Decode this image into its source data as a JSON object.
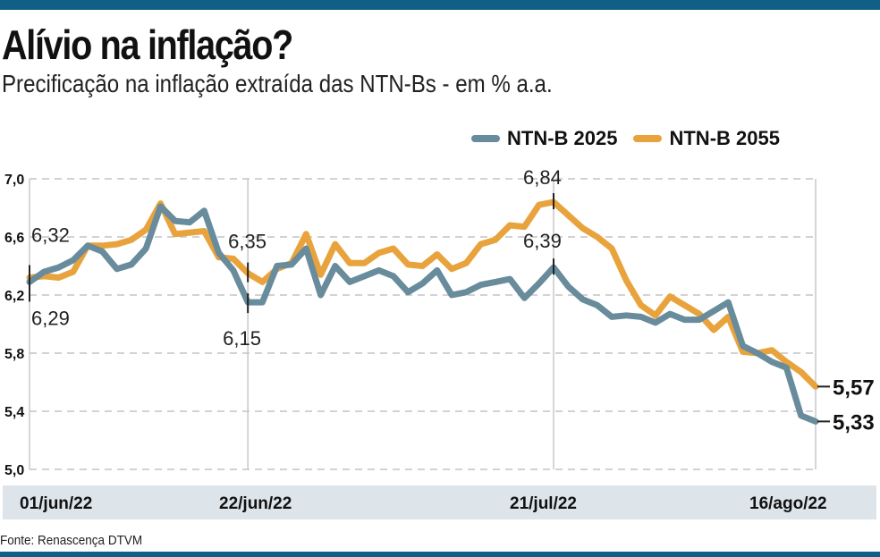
{
  "header": {
    "title": "Alívio na inflação?",
    "subtitle": "Precificação na inflação extraída das NTN-Bs - em % a.a."
  },
  "source": "Fonte: Renascença DTVM",
  "colors": {
    "brand_bar": "#0f5f86",
    "axis_band": "#dde4ea",
    "series_2025": "#688c9c",
    "series_2055": "#e8a33d"
  },
  "chart_data": {
    "type": "line",
    "title": "Alívio na inflação?",
    "subtitle": "Precificação na inflação extraída das NTN-Bs - em % a.a.",
    "xlabel": "",
    "ylabel": "% a.a.",
    "ylim": [
      5.0,
      7.0
    ],
    "yticks": [
      5.0,
      5.4,
      5.8,
      6.2,
      6.6,
      7.0
    ],
    "ytick_labels": [
      "5,0",
      "5,4",
      "5,8",
      "6,2",
      "6,6",
      "7,0"
    ],
    "grid": "horizontal dashed",
    "legend_position": "top-right",
    "x_tick_labels": [
      {
        "label": "01/jun/22",
        "index": 0
      },
      {
        "label": "22/jun/22",
        "index": 15
      },
      {
        "label": "21/jul/22",
        "index": 36
      },
      {
        "label": "16/ago/22",
        "index": 54
      }
    ],
    "x_count": 55,
    "series": [
      {
        "name": "NTN-B 2025",
        "color": "#688c9c",
        "values": [
          6.29,
          6.36,
          6.39,
          6.44,
          6.54,
          6.5,
          6.38,
          6.41,
          6.52,
          6.81,
          6.71,
          6.7,
          6.78,
          6.49,
          6.37,
          6.15,
          6.15,
          6.4,
          6.41,
          6.52,
          6.2,
          6.4,
          6.29,
          6.33,
          6.37,
          6.33,
          6.22,
          6.28,
          6.37,
          6.2,
          6.22,
          6.27,
          6.29,
          6.31,
          6.18,
          6.28,
          6.39,
          6.26,
          6.17,
          6.13,
          6.05,
          6.06,
          6.05,
          6.01,
          6.07,
          6.03,
          6.03,
          6.09,
          6.15,
          5.85,
          5.8,
          5.74,
          5.7,
          5.37,
          5.33
        ]
      },
      {
        "name": "NTN-B 2055",
        "color": "#e8a33d",
        "values": [
          6.32,
          6.33,
          6.32,
          6.36,
          6.54,
          6.54,
          6.55,
          6.58,
          6.65,
          6.83,
          6.62,
          6.63,
          6.64,
          6.46,
          6.45,
          6.35,
          6.29,
          6.38,
          6.42,
          6.62,
          6.34,
          6.55,
          6.42,
          6.42,
          6.49,
          6.52,
          6.41,
          6.4,
          6.48,
          6.38,
          6.42,
          6.55,
          6.58,
          6.68,
          6.67,
          6.82,
          6.84,
          6.75,
          6.66,
          6.6,
          6.52,
          6.3,
          6.13,
          6.06,
          6.19,
          6.13,
          6.07,
          5.96,
          6.05,
          5.81,
          5.8,
          5.82,
          5.74,
          5.67,
          5.57
        ]
      }
    ],
    "annotations": [
      {
        "label": "6,32",
        "series": "NTN-B 2055",
        "index": 0,
        "placement": "above"
      },
      {
        "label": "6,29",
        "series": "NTN-B 2025",
        "index": 0,
        "placement": "below"
      },
      {
        "label": "6,35",
        "series": "NTN-B 2055",
        "index": 15,
        "placement": "above"
      },
      {
        "label": "6,15",
        "series": "NTN-B 2025",
        "index": 15,
        "placement": "below"
      },
      {
        "label": "6,84",
        "series": "NTN-B 2055",
        "index": 36,
        "placement": "above"
      },
      {
        "label": "6,39",
        "series": "NTN-B 2025",
        "index": 36,
        "placement": "above"
      },
      {
        "label": "5,57",
        "series": "NTN-B 2055",
        "index": 54,
        "placement": "right"
      },
      {
        "label": "5,33",
        "series": "NTN-B 2025",
        "index": 54,
        "placement": "right"
      }
    ]
  }
}
